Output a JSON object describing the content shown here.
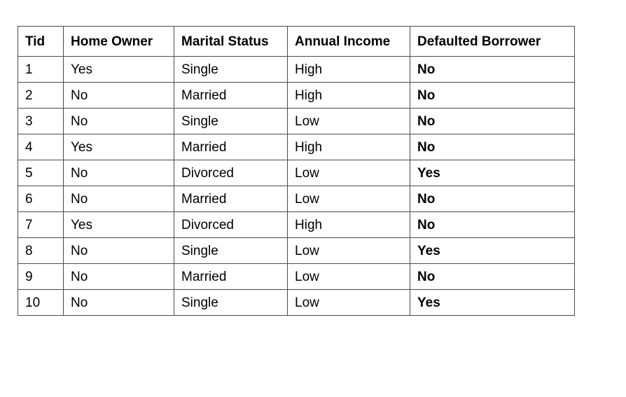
{
  "table": {
    "headers": [
      "Tid",
      "Home Owner",
      "Marital Status",
      "Annual Income",
      "Defaulted Borrower"
    ],
    "rows": [
      [
        "1",
        "Yes",
        "Single",
        "High",
        "No"
      ],
      [
        "2",
        "No",
        "Married",
        "High",
        "No"
      ],
      [
        "3",
        "No",
        "Single",
        "Low",
        "No"
      ],
      [
        "4",
        "Yes",
        "Married",
        "High",
        "No"
      ],
      [
        "5",
        "No",
        "Divorced",
        "Low",
        "Yes"
      ],
      [
        "6",
        "No",
        "Married",
        "Low",
        "No"
      ],
      [
        "7",
        "Yes",
        "Divorced",
        "High",
        "No"
      ],
      [
        "8",
        "No",
        "Single",
        "Low",
        "Yes"
      ],
      [
        "9",
        "No",
        "Married",
        "Low",
        "No"
      ],
      [
        "10",
        "No",
        "Single",
        "Low",
        "Yes"
      ]
    ]
  }
}
